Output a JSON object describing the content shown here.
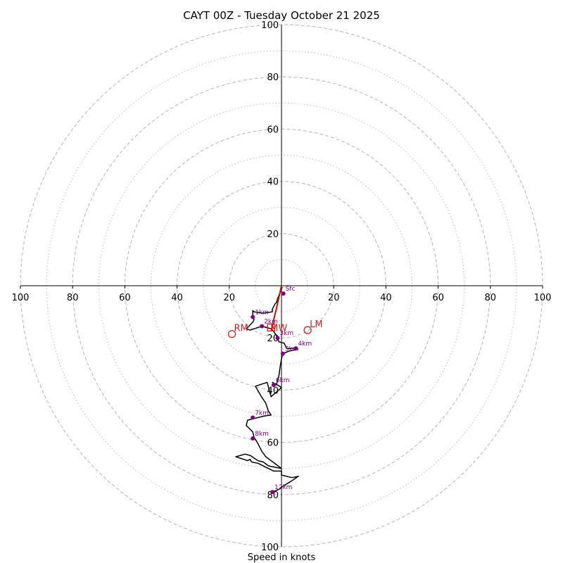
{
  "chart_data": {
    "type": "hodograph",
    "title": "CAYT 00Z - Tuesday October 21 2025",
    "xlabel": "Speed in knots",
    "ring_labels": [
      "20",
      "40",
      "60",
      "80",
      "100"
    ],
    "axis_tick_labels": [
      "100",
      "80",
      "60",
      "40",
      "20",
      "20",
      "40",
      "60",
      "80",
      "100"
    ],
    "rings_major": [
      20,
      40,
      60,
      80,
      100
    ],
    "rings_minor": [
      10,
      30,
      50,
      70,
      90
    ],
    "range": [
      -100,
      100
    ],
    "colors": {
      "hodograph": "#000000",
      "lowlevel": "#cc1100",
      "markers": "#800080",
      "motion": "#cc2222",
      "grid": "#bbbbbb"
    },
    "hodograph": [
      [
        0.3,
        -0.5
      ],
      [
        -0.5,
        -2.5
      ],
      [
        -1.5,
        -5
      ],
      [
        -2,
        -6.5
      ],
      [
        -2.5,
        -7
      ],
      [
        -3.5,
        -9
      ],
      [
        -3.5,
        -10
      ],
      [
        -7,
        -10.5
      ],
      [
        -10.5,
        -10
      ],
      [
        -11,
        -9.5
      ],
      [
        -11,
        -12
      ],
      [
        -10.5,
        -13
      ],
      [
        -11,
        -14
      ],
      [
        -13,
        -16
      ],
      [
        -13.5,
        -16.5
      ],
      [
        -12,
        -17
      ],
      [
        -7.5,
        -15.5
      ],
      [
        -4,
        -16.5
      ],
      [
        -3,
        -17.5
      ],
      [
        -2,
        -19
      ],
      [
        -1.5,
        -20
      ],
      [
        -1,
        -21.5
      ],
      [
        1,
        -22
      ],
      [
        2,
        -24
      ],
      [
        4,
        -24
      ],
      [
        6,
        -24
      ],
      [
        5.5,
        -24.5
      ],
      [
        3,
        -25
      ],
      [
        0.5,
        -26
      ],
      [
        0,
        -28
      ],
      [
        -0.5,
        -31
      ],
      [
        -1,
        -34.5
      ],
      [
        -2,
        -38
      ],
      [
        -3.5,
        -37
      ],
      [
        -1.5,
        -38
      ],
      [
        0,
        -39
      ],
      [
        -4,
        -42.5
      ],
      [
        -5.5,
        -37
      ],
      [
        -10,
        -38.5
      ],
      [
        -8,
        -42
      ],
      [
        -6,
        -45
      ],
      [
        -5,
        -48
      ],
      [
        -4,
        -49.5
      ],
      [
        -7,
        -50
      ],
      [
        -11,
        -51
      ],
      [
        -13,
        -51.5
      ],
      [
        -13.5,
        -53.5
      ],
      [
        -11,
        -56
      ],
      [
        -10.5,
        -58
      ],
      [
        -9,
        -60.5
      ],
      [
        -7.5,
        -63.5
      ],
      [
        -6,
        -65.5
      ],
      [
        -4,
        -67
      ],
      [
        -2,
        -68.5
      ],
      [
        0,
        -70
      ],
      [
        -5,
        -69
      ],
      [
        -7,
        -67.5
      ],
      [
        -9,
        -67
      ],
      [
        -10.5,
        -66
      ],
      [
        -12,
        -65
      ],
      [
        -14,
        -64.5
      ],
      [
        -17.5,
        -65.5
      ],
      [
        -13,
        -67
      ],
      [
        -12,
        -66.5
      ],
      [
        -11.5,
        -67.5
      ],
      [
        -9,
        -68
      ],
      [
        -5,
        -70
      ],
      [
        -3,
        -71
      ],
      [
        0,
        -71
      ],
      [
        0,
        -72.5
      ],
      [
        4,
        -73.5
      ],
      [
        6.5,
        -73
      ],
      [
        3.5,
        -75
      ],
      [
        1,
        -76.5
      ],
      [
        -1,
        -78
      ],
      [
        -3.5,
        -79
      ]
    ],
    "lowlevel": [
      [
        0,
        0
      ],
      [
        -1,
        -4.5
      ],
      [
        -2,
        -9
      ],
      [
        -3,
        -13
      ],
      [
        -3.5,
        -16
      ],
      [
        -4,
        -17.5
      ]
    ],
    "km_markers": [
      {
        "label": "Sfc",
        "u": 0.7,
        "v": -3
      },
      {
        "label": "1km",
        "u": -11,
        "v": -12
      },
      {
        "label": "2km",
        "u": -7.5,
        "v": -15.5
      },
      {
        "label": "3km",
        "u": -1.5,
        "v": -20
      },
      {
        "label": "4km",
        "u": 5.5,
        "v": -24
      },
      {
        "label": "5km",
        "u": 0.5,
        "v": -26
      },
      {
        "label": "6km",
        "u": -3,
        "v": -38
      },
      {
        "label": "7km",
        "u": -11,
        "v": -50.5
      },
      {
        "label": "8km",
        "u": -11,
        "v": -58.5
      },
      {
        "label": "12km",
        "u": -3.5,
        "v": -79
      }
    ],
    "storm_motion": [
      {
        "label": "RM",
        "u": -19,
        "v": -18.5
      },
      {
        "label": "LM",
        "u": 10,
        "v": -17
      },
      {
        "label": "MW",
        "u": -4,
        "v": -16
      }
    ]
  }
}
